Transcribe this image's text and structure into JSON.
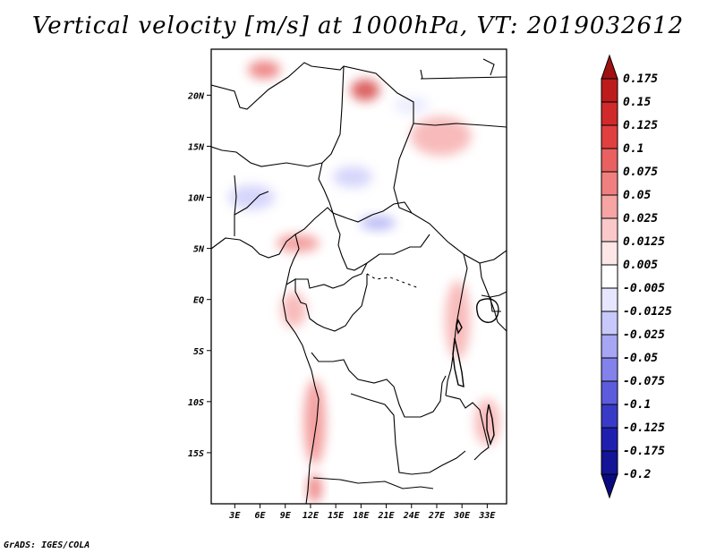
{
  "title": "Vertical velocity [m/s] at 1000hPa, VT: 2019032612",
  "credit": "GrADS: IGES/COLA",
  "map": {
    "lat_labels": [
      "20N",
      "15N",
      "10N",
      "5N",
      "EQ",
      "5S",
      "10S",
      "15S"
    ],
    "lon_labels": [
      "3E",
      "6E",
      "9E",
      "12E",
      "15E",
      "18E",
      "21E",
      "24E",
      "27E",
      "30E",
      "33E"
    ],
    "lat_values": [
      20,
      15,
      10,
      5,
      0,
      -5,
      -10,
      -15
    ],
    "lon_values": [
      3,
      6,
      9,
      12,
      15,
      18,
      21,
      24,
      27,
      30,
      33
    ],
    "lat_range": [
      -20,
      24.5
    ],
    "lon_range": [
      0.2,
      35.3
    ]
  },
  "legend": {
    "labels": [
      "0.175",
      "0.15",
      "0.125",
      "0.1",
      "0.075",
      "0.05",
      "0.025",
      "0.0125",
      "0.005",
      "-0.005",
      "-0.0125",
      "-0.025",
      "-0.05",
      "-0.075",
      "-0.1",
      "-0.125",
      "-0.175",
      "-0.2"
    ],
    "colors": [
      "#a01010",
      "#bc1c1c",
      "#d02a2a",
      "#e04040",
      "#e86060",
      "#f08080",
      "#f6a4a4",
      "#fac8c8",
      "#fde6e6",
      "#ffffff",
      "#e6e6fe",
      "#c8c8fa",
      "#a6a6f4",
      "#8282ea",
      "#5c5cdc",
      "#3a3ac8",
      "#2020b0",
      "#141496",
      "#0a0a80"
    ]
  },
  "features": [
    {
      "name": "upwelling-northwest-sahara",
      "lon": 6.5,
      "lat": 22.5,
      "rx": 18,
      "ry": 10,
      "color": "#e86060"
    },
    {
      "name": "upwelling-tibesti",
      "lon": 18.5,
      "lat": 20.5,
      "rx": 16,
      "ry": 12,
      "color": "#d02a2a"
    },
    {
      "name": "upwelling-sudan",
      "lon": 27.5,
      "lat": 16,
      "rx": 34,
      "ry": 22,
      "color": "#f6a4a4"
    },
    {
      "name": "upwelling-cameroon-line",
      "lon": 10.5,
      "lat": 5.5,
      "rx": 24,
      "ry": 10,
      "color": "#f08080"
    },
    {
      "name": "upwelling-gabon-coast",
      "lon": 10,
      "lat": -1,
      "rx": 14,
      "ry": 20,
      "color": "#f6a4a4"
    },
    {
      "name": "upwelling-angola-coast",
      "lon": 12.5,
      "lat": -12,
      "rx": 12,
      "ry": 48,
      "color": "#f08080"
    },
    {
      "name": "upwelling-namibia-coast",
      "lon": 12.5,
      "lat": -18.5,
      "rx": 8,
      "ry": 16,
      "color": "#e86060"
    },
    {
      "name": "upwelling-great-lakes",
      "lon": 29.5,
      "lat": -2,
      "rx": 14,
      "ry": 44,
      "color": "#f6a4a4"
    },
    {
      "name": "upwelling-lake-malawi",
      "lon": 33,
      "lat": -12,
      "rx": 14,
      "ry": 26,
      "color": "#f6a4a4"
    },
    {
      "name": "subsidence-niger",
      "lon": 5,
      "lat": 10,
      "rx": 26,
      "ry": 14,
      "color": "#c8c8fa"
    },
    {
      "name": "subsidence-chad",
      "lon": 17,
      "lat": 12,
      "rx": 22,
      "ry": 12,
      "color": "#c8c8fa"
    },
    {
      "name": "subsidence-central-african-republic",
      "lon": 20,
      "lat": 7.5,
      "rx": 20,
      "ry": 8,
      "color": "#a6a6f4"
    },
    {
      "name": "subsidence-sahara-east",
      "lon": 24,
      "lat": 19,
      "rx": 20,
      "ry": 10,
      "color": "#e6e6fe"
    }
  ]
}
